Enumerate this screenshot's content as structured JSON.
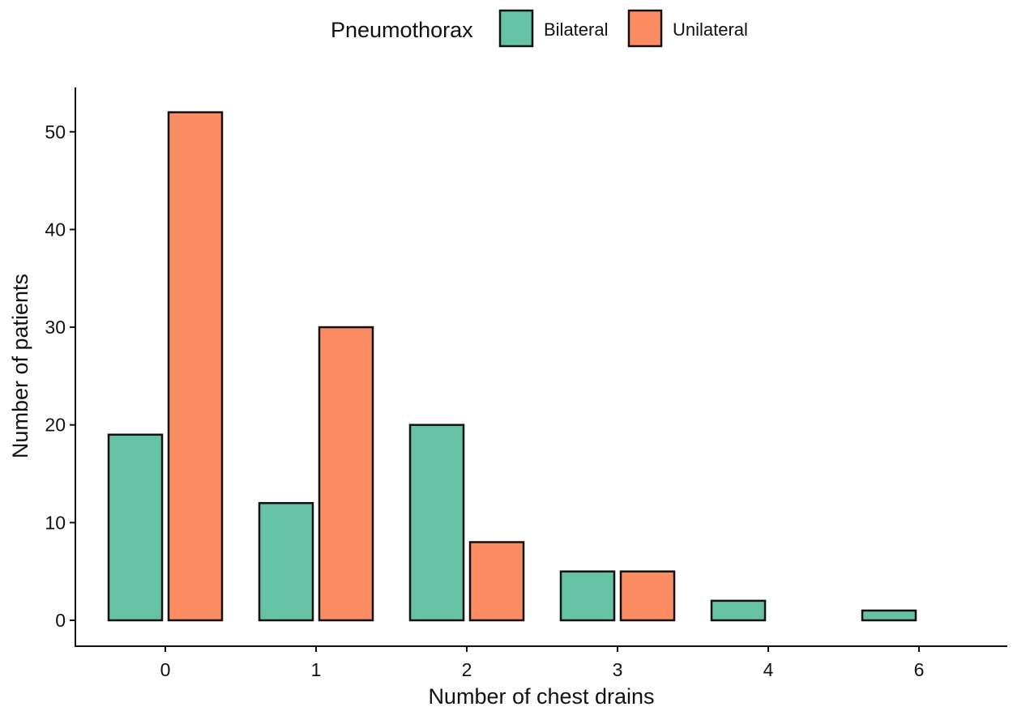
{
  "chart_data": {
    "type": "bar",
    "xlabel": "Number of chest drains",
    "ylabel": "Number of patients",
    "categories": [
      "0",
      "1",
      "2",
      "3",
      "4",
      "6"
    ],
    "series": [
      {
        "name": "Bilateral",
        "values": [
          19,
          12,
          20,
          5,
          2,
          1
        ],
        "color": "#66c2a5"
      },
      {
        "name": "Unilateral",
        "values": [
          52,
          30,
          8,
          5,
          0,
          0
        ],
        "color": "#fc8d62"
      }
    ],
    "ylim": [
      0,
      54
    ],
    "yticks": [
      0,
      10,
      20,
      30,
      40,
      50
    ],
    "grid": false,
    "legend": {
      "title": "Pneumothorax",
      "position": "top"
    }
  }
}
